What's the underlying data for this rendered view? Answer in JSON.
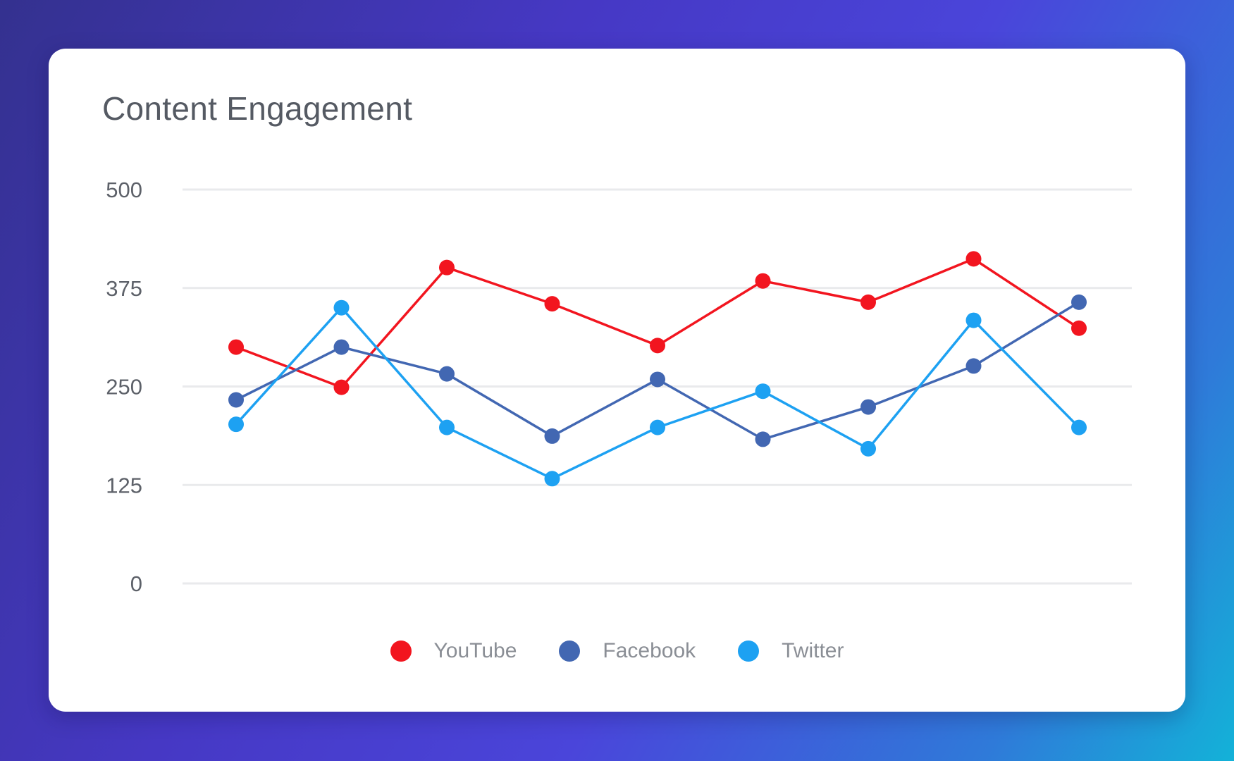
{
  "card": {
    "title": "Content Engagement"
  },
  "chart_data": {
    "type": "line",
    "title": "Content Engagement",
    "xlabel": "",
    "ylabel": "",
    "ylim": [
      0,
      500
    ],
    "yticks": [
      0,
      125,
      250,
      375,
      500
    ],
    "grid": true,
    "legend_position": "bottom-center",
    "x": [
      1,
      2,
      3,
      4,
      5,
      6,
      7,
      8,
      9
    ],
    "series": [
      {
        "name": "YouTube",
        "color": "#f2151f",
        "values": [
          300,
          249,
          401,
          355,
          302,
          384,
          357,
          412,
          324
        ]
      },
      {
        "name": "Facebook",
        "color": "#4267b2",
        "values": [
          233,
          300,
          266,
          187,
          259,
          183,
          224,
          276,
          357
        ]
      },
      {
        "name": "Twitter",
        "color": "#1da1f2",
        "values": [
          202,
          350,
          198,
          133,
          198,
          244,
          171,
          334,
          198
        ]
      }
    ]
  }
}
